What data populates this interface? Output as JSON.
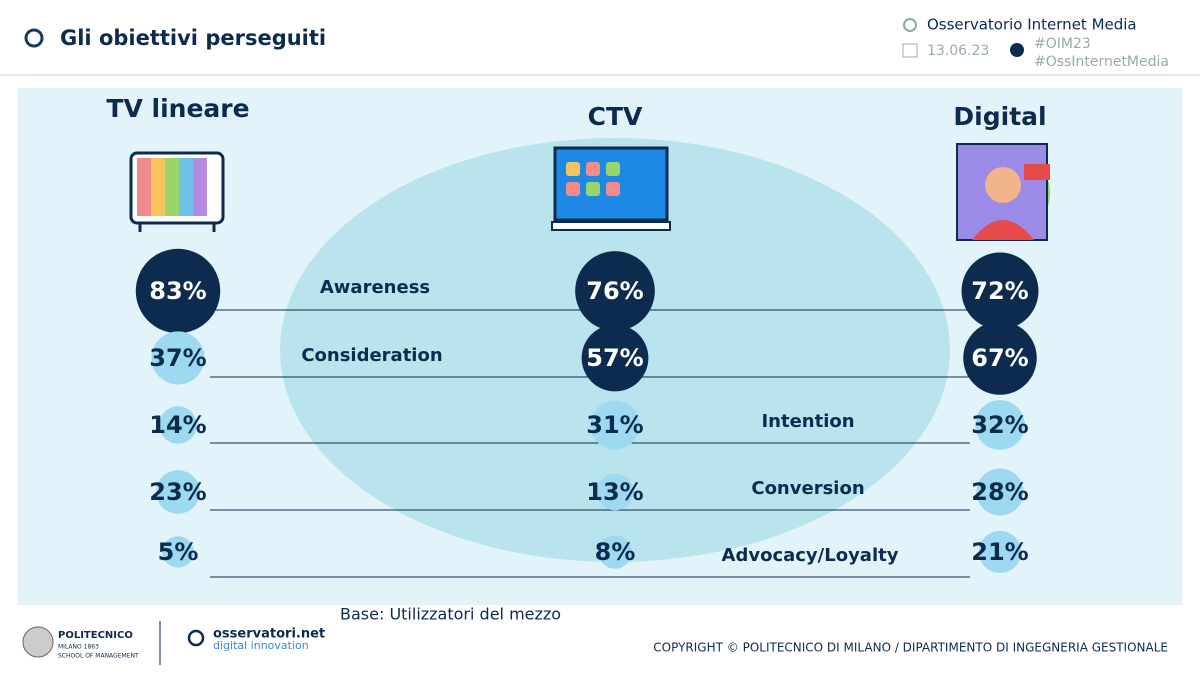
{
  "header": {
    "title": "Gli obiettivi perseguiti",
    "source": "Osservatorio Internet Media",
    "date": "13.06.23",
    "hashtags": [
      "#OIM23",
      "#OssInternetMedia"
    ]
  },
  "chart_data": {
    "type": "bubble",
    "categories": [
      "Awareness",
      "Consideration",
      "Intention",
      "Conversion",
      "Advocacy/Loyalty"
    ],
    "series": [
      {
        "name": "TV lineare",
        "values": [
          83,
          37,
          14,
          23,
          5
        ],
        "value_labels": [
          "83%",
          "37%",
          "14%",
          "23%",
          "5%"
        ]
      },
      {
        "name": "CTV",
        "values": [
          76,
          57,
          31,
          13,
          8
        ],
        "value_labels": [
          "76%",
          "57%",
          "31%",
          "13%",
          "8%"
        ]
      },
      {
        "name": "Digital",
        "values": [
          72,
          67,
          32,
          28,
          21
        ],
        "value_labels": [
          "72%",
          "67%",
          "32%",
          "28%",
          "21%"
        ]
      }
    ]
  },
  "footer": {
    "base": "Base: Utilizzatori del mezzo",
    "copyright": "COPYRIGHT © POLITECNICO DI MILANO / DIPARTIMENTO DI INGEGNERIA GESTIONALE",
    "logo_1": [
      "POLITECNICO",
      "MILANO 1863",
      "SCHOOL OF MANAGEMENT"
    ],
    "logo_2": [
      "osservatori.net",
      "digital innovation"
    ]
  }
}
